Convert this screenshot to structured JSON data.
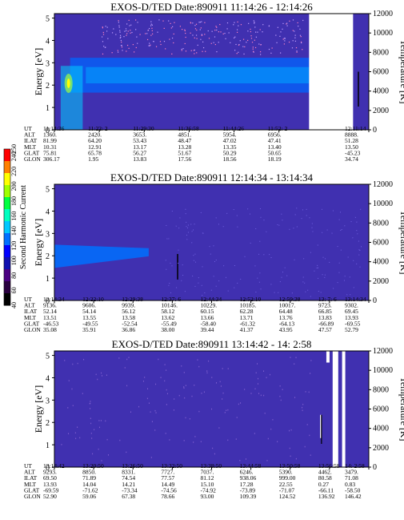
{
  "chart_data": [
    {
      "type": "heatmap",
      "title": "EXOS-D/TED   Date:890911  11:14:26 - 12:14:26",
      "ylabel": "Energy [eV]",
      "y2label": "Temperature [K]",
      "yticks": [
        "0",
        "1",
        "2",
        "3",
        "4",
        "5"
      ],
      "ylim": [
        0,
        5.2
      ],
      "y2ticks": [
        "0",
        "2000",
        "4000",
        "6000",
        "8000",
        "10000",
        "12000"
      ],
      "y2lim": [
        0,
        12000
      ],
      "data_gap": [
        0.81,
        0.95
      ],
      "rows": [
        {
          "name": "UT",
          "values": [
            "11:14:36",
            "11:22: 2",
            "11:29:30",
            "11:36:58",
            "11:44:26",
            "11:52: 2",
            "",
            "12:11:14"
          ]
        },
        {
          "name": "ALT",
          "values": [
            "1360.",
            "2420.",
            "3653.",
            "4851.",
            "5954.",
            "6956.",
            "",
            "8888."
          ]
        },
        {
          "name": "ILAT",
          "values": [
            "81.99",
            "64.20",
            "53.43",
            "48.47",
            "47.02",
            "47.41",
            "",
            "51.28"
          ]
        },
        {
          "name": "MLT",
          "values": [
            "10.31",
            "12.91",
            "13.17",
            "13.28",
            "13.35",
            "13.40",
            "",
            "13.50"
          ]
        },
        {
          "name": "GLAT",
          "values": [
            "75.81",
            "65.78",
            "56.27",
            "51.67",
            "50.29",
            "50.65",
            "",
            "-45.23"
          ]
        },
        {
          "name": "GLON",
          "values": [
            "306.17",
            "1.95",
            "13.83",
            "17.56",
            "18.56",
            "18.19",
            "",
            "34.74"
          ]
        }
      ]
    },
    {
      "type": "heatmap",
      "title": "EXOS-D/TED   Date:890911  12:14:34 - 13:14:34",
      "ylabel": "Energy [eV]",
      "y2label": "Temperature [K]",
      "yticks": [
        "0",
        "1",
        "2",
        "3",
        "4",
        "5"
      ],
      "ylim": [
        0,
        5.2
      ],
      "y2ticks": [
        "0",
        "2000",
        "4000",
        "6000",
        "8000",
        "10000",
        "12000"
      ],
      "y2lim": [
        0,
        12000
      ],
      "rows": [
        {
          "name": "UT",
          "values": [
            "12:14:34",
            "12:22:10",
            "12:29:38",
            "12:37: 6",
            "12:44:34",
            "12:52:10",
            "12:59:38",
            "13: 7: 6",
            "13:14:34"
          ]
        },
        {
          "name": "ALT",
          "values": [
            "9136.",
            "9606.",
            "9939.",
            "10146.",
            "10229.",
            "10185.",
            "10017.",
            "9723.",
            "9302."
          ]
        },
        {
          "name": "ILAT",
          "values": [
            "52.14",
            "54.14",
            "56.12",
            "58.12",
            "60.15",
            "62.28",
            "64.48",
            "66.85",
            "69.45"
          ]
        },
        {
          "name": "MLT",
          "values": [
            "13.51",
            "13.55",
            "13.58",
            "13.62",
            "13.66",
            "13.71",
            "13.76",
            "13.83",
            "13.93"
          ]
        },
        {
          "name": "GLAT",
          "values": [
            "-46.53",
            "-49.55",
            "-52.54",
            "-55.49",
            "-58.40",
            "-61.32",
            "-64.13",
            "-66.89",
            "-69.55"
          ]
        },
        {
          "name": "GLON",
          "values": [
            "35.08",
            "35.91",
            "36.86",
            "38.00",
            "39.44",
            "41.37",
            "43.95",
            "47.57",
            "52.79"
          ]
        }
      ]
    },
    {
      "type": "heatmap",
      "title": "EXOS-D/TED   Date:890911  13:14:42 - 14: 2:58",
      "ylabel": "Energy [eV]",
      "y2label": "Temperature [K]",
      "yticks": [
        "0",
        "1",
        "2",
        "3",
        "4",
        "5"
      ],
      "ylim": [
        0,
        5.2
      ],
      "y2ticks": [
        "0",
        "2000",
        "4000",
        "6000",
        "8000",
        "10000",
        "12000"
      ],
      "y2lim": [
        0,
        12000
      ],
      "rows": [
        {
          "name": "UT",
          "values": [
            "13:14:42",
            "13:20:50",
            "13:26:50",
            "13:32:50",
            "13:38:50",
            "13:44:58",
            "13:50:58",
            "13:56:58",
            "14: 2:58"
          ]
        },
        {
          "name": "ALT",
          "values": [
            "9293.",
            "8850.",
            "8331.",
            "7727.",
            "7037.",
            "6246.",
            "5390.",
            "4462.",
            "3479."
          ]
        },
        {
          "name": "ILAT",
          "values": [
            "69.50",
            "71.89",
            "74.54",
            "77.57",
            "81.12",
            "938.06",
            "999.00",
            "80.58",
            "71.08"
          ]
        },
        {
          "name": "MLT",
          "values": [
            "13.93",
            "14.04",
            "14.21",
            "14.49",
            "15.10",
            "17.28",
            "22.55",
            "0.27",
            "0.83"
          ]
        },
        {
          "name": "GLAT",
          "values": [
            "-69.59",
            "-71.62",
            "-73.34",
            "-74.56",
            "-74.92",
            "-73.89",
            "-71.07",
            "-66.11",
            "-58.50"
          ]
        },
        {
          "name": "GLON",
          "values": [
            "52.90",
            "59.06",
            "67.38",
            "78.66",
            "93.00",
            "109.39",
            "124.52",
            "136.92",
            "146.42"
          ]
        }
      ]
    }
  ],
  "colorbar": {
    "label": "Second Harmonic Current",
    "ticks": [
      "40",
      "60",
      "80",
      "100",
      "120",
      "140",
      "160",
      "180",
      "200",
      "220",
      "240",
      "250"
    ],
    "range": [
      40,
      250
    ],
    "colors": [
      "#000000",
      "#2a0040",
      "#4b0082",
      "#1010b0",
      "#0000ff",
      "#0070ff",
      "#00c8ff",
      "#00ffc0",
      "#00ff40",
      "#a0ff00",
      "#ffff00",
      "#ff8000",
      "#ff0000"
    ]
  },
  "theme": {
    "background": "#4030b0",
    "gap": "#ffffff"
  }
}
